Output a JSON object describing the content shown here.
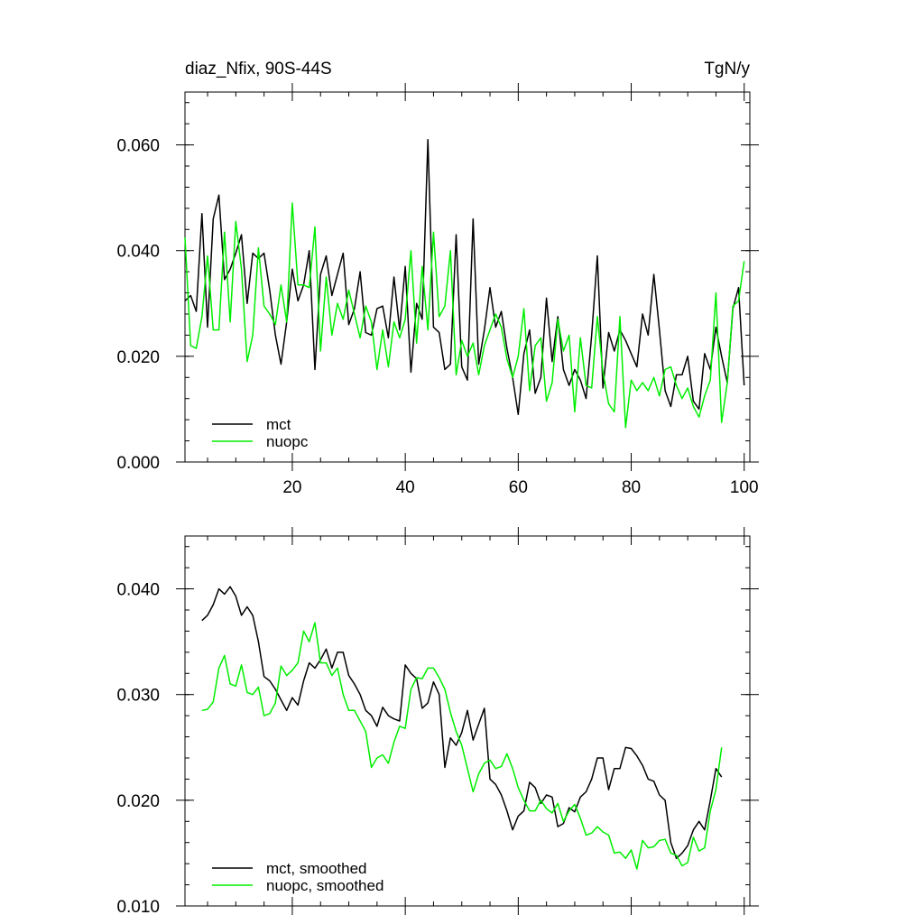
{
  "chart_data": [
    {
      "type": "line",
      "title_left": "diaz_Nfix, 90S-44S",
      "title_right": "TgN/y",
      "xlim": [
        1,
        101
      ],
      "ylim": [
        0.0,
        0.07
      ],
      "xticks": [
        20,
        40,
        60,
        80,
        100
      ],
      "xtick_labels": [
        "20",
        "40",
        "60",
        "80",
        "100"
      ],
      "yticks": [
        0.0,
        0.02,
        0.04,
        0.06
      ],
      "ytick_labels": [
        "0.000",
        "0.020",
        "0.040",
        "0.060"
      ],
      "show_x_tick_labels": true,
      "legend_position": "bottom-left",
      "series": [
        {
          "name": "mct",
          "color": "#000000",
          "x_start": 1,
          "values": [
            0.0305,
            0.0315,
            0.0285,
            0.047,
            0.0255,
            0.046,
            0.0505,
            0.0345,
            0.0365,
            0.0395,
            0.043,
            0.03,
            0.0395,
            0.0385,
            0.0395,
            0.0325,
            0.024,
            0.0185,
            0.0265,
            0.0365,
            0.0305,
            0.0335,
            0.04,
            0.0175,
            0.0355,
            0.039,
            0.0315,
            0.0355,
            0.0395,
            0.026,
            0.029,
            0.036,
            0.0245,
            0.024,
            0.029,
            0.0295,
            0.0235,
            0.035,
            0.025,
            0.037,
            0.017,
            0.03,
            0.027,
            0.061,
            0.0255,
            0.0245,
            0.0175,
            0.0185,
            0.043,
            0.018,
            0.0155,
            0.046,
            0.0185,
            0.025,
            0.033,
            0.0255,
            0.0285,
            0.0215,
            0.016,
            0.009,
            0.0205,
            0.025,
            0.013,
            0.016,
            0.031,
            0.019,
            0.0275,
            0.0175,
            0.0145,
            0.0175,
            0.0155,
            0.012,
            0.024,
            0.039,
            0.014,
            0.0245,
            0.021,
            0.025,
            0.023,
            0.0205,
            0.018,
            0.028,
            0.024,
            0.0355,
            0.025,
            0.0135,
            0.0105,
            0.0165,
            0.0165,
            0.02,
            0.0115,
            0.01,
            0.0205,
            0.0175,
            0.0255,
            0.02,
            0.015,
            0.029,
            0.033,
            0.0145
          ]
        },
        {
          "name": "nuopc",
          "color": "#00ee00",
          "x_start": 1,
          "values": [
            0.0425,
            0.022,
            0.0215,
            0.0275,
            0.039,
            0.025,
            0.025,
            0.0435,
            0.0265,
            0.0455,
            0.0365,
            0.019,
            0.024,
            0.0405,
            0.0295,
            0.028,
            0.026,
            0.0335,
            0.0265,
            0.049,
            0.0335,
            0.0335,
            0.033,
            0.0445,
            0.021,
            0.035,
            0.024,
            0.03,
            0.027,
            0.0325,
            0.028,
            0.0235,
            0.0295,
            0.0265,
            0.0175,
            0.025,
            0.018,
            0.0265,
            0.0235,
            0.027,
            0.04,
            0.0225,
            0.037,
            0.025,
            0.0435,
            0.0275,
            0.0295,
            0.04,
            0.0165,
            0.023,
            0.02,
            0.0225,
            0.0165,
            0.022,
            0.025,
            0.028,
            0.0255,
            0.0195,
            0.016,
            0.02,
            0.029,
            0.0135,
            0.022,
            0.0235,
            0.0115,
            0.015,
            0.027,
            0.021,
            0.024,
            0.0095,
            0.0235,
            0.0145,
            0.014,
            0.0275,
            0.017,
            0.011,
            0.0095,
            0.0275,
            0.0065,
            0.0155,
            0.0135,
            0.015,
            0.0135,
            0.016,
            0.0125,
            0.0175,
            0.018,
            0.0145,
            0.012,
            0.014,
            0.0105,
            0.0085,
            0.0125,
            0.0155,
            0.032,
            0.0075,
            0.015,
            0.0295,
            0.0305,
            0.038
          ]
        }
      ]
    },
    {
      "type": "line",
      "xlim": [
        1,
        101
      ],
      "ylim": [
        0.01,
        0.045
      ],
      "xticks": [
        20,
        40,
        60,
        80,
        100
      ],
      "yticks": [
        0.01,
        0.02,
        0.03,
        0.04
      ],
      "ytick_labels": [
        "0.010",
        "0.020",
        "0.030",
        "0.040"
      ],
      "show_x_tick_labels": false,
      "legend_position": "bottom-left",
      "series": [
        {
          "name": "mct, smoothed",
          "color": "#000000",
          "x_start": 4,
          "values": [
            0.037,
            0.0375,
            0.0385,
            0.04,
            0.0395,
            0.0402,
            0.0393,
            0.0375,
            0.0383,
            0.0375,
            0.035,
            0.0317,
            0.0313,
            0.0305,
            0.0295,
            0.0285,
            0.0297,
            0.029,
            0.0313,
            0.033,
            0.0325,
            0.0333,
            0.0343,
            0.0325,
            0.034,
            0.034,
            0.0318,
            0.031,
            0.03,
            0.0285,
            0.028,
            0.027,
            0.0288,
            0.028,
            0.0277,
            0.0275,
            0.0328,
            0.032,
            0.0315,
            0.0287,
            0.0292,
            0.0312,
            0.03,
            0.0231,
            0.0259,
            0.0252,
            0.0264,
            0.0285,
            0.0257,
            0.0272,
            0.0287,
            0.022,
            0.0215,
            0.0205,
            0.019,
            0.0172,
            0.0185,
            0.019,
            0.0217,
            0.0212,
            0.0197,
            0.0205,
            0.0203,
            0.0175,
            0.0178,
            0.0193,
            0.0189,
            0.0203,
            0.0208,
            0.022,
            0.024,
            0.024,
            0.021,
            0.023,
            0.023,
            0.025,
            0.0249,
            0.0242,
            0.0233,
            0.022,
            0.0218,
            0.0205,
            0.02,
            0.016,
            0.0145,
            0.015,
            0.0157,
            0.0172,
            0.018,
            0.0172,
            0.02,
            0.023,
            0.0222
          ]
        },
        {
          "name": "nuopc, smoothed",
          "color": "#00ee00",
          "x_start": 4,
          "values": [
            0.0285,
            0.0286,
            0.0293,
            0.0325,
            0.0337,
            0.031,
            0.0308,
            0.0328,
            0.0302,
            0.03,
            0.0307,
            0.028,
            0.0282,
            0.0292,
            0.0327,
            0.0318,
            0.0323,
            0.033,
            0.036,
            0.035,
            0.0368,
            0.033,
            0.033,
            0.0318,
            0.0325,
            0.03,
            0.0285,
            0.0285,
            0.0275,
            0.0265,
            0.0231,
            0.024,
            0.0243,
            0.0235,
            0.0255,
            0.027,
            0.0268,
            0.0305,
            0.0316,
            0.0315,
            0.0325,
            0.0325,
            0.0316,
            0.0305,
            0.0283,
            0.0265,
            0.0252,
            0.023,
            0.0208,
            0.0225,
            0.0235,
            0.0238,
            0.023,
            0.0232,
            0.0244,
            0.023,
            0.0212,
            0.02,
            0.019,
            0.019,
            0.02,
            0.0192,
            0.0188,
            0.0197,
            0.018,
            0.019,
            0.0196,
            0.0183,
            0.0167,
            0.0169,
            0.0175,
            0.017,
            0.0167,
            0.015,
            0.0151,
            0.0145,
            0.0153,
            0.0135,
            0.0162,
            0.0155,
            0.0156,
            0.0162,
            0.0163,
            0.015,
            0.0148,
            0.0138,
            0.0141,
            0.0165,
            0.0152,
            0.0155,
            0.019,
            0.021,
            0.025
          ]
        }
      ]
    }
  ]
}
